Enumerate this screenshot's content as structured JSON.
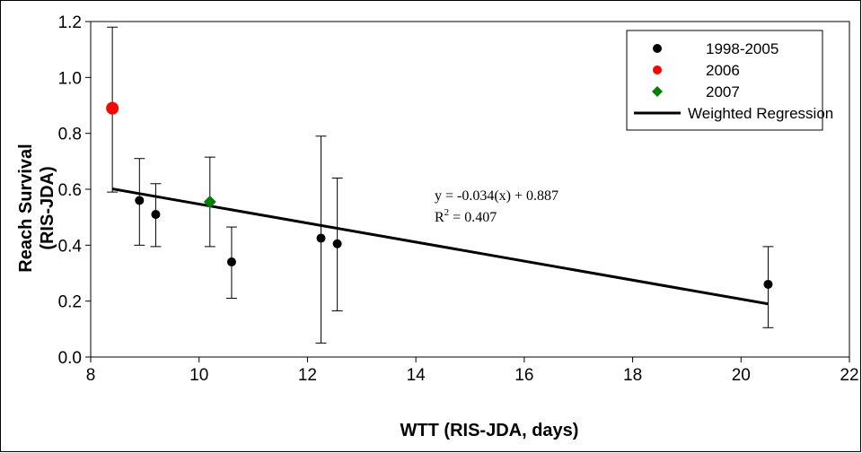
{
  "chart_data": {
    "type": "scatter",
    "xlabel": "WTT (RIS-JDA, days)",
    "ylabel": [
      "Reach Survival",
      "(RIS-JDA)"
    ],
    "xlim": [
      8,
      22
    ],
    "ylim": [
      0.0,
      1.2
    ],
    "x_ticks": [
      8,
      10,
      12,
      14,
      16,
      18,
      20,
      22
    ],
    "y_ticks": [
      0.0,
      0.2,
      0.4,
      0.6,
      0.8,
      1.0,
      1.2
    ],
    "y_tick_labels": [
      "0.0",
      "0.2",
      "0.4",
      "0.6",
      "0.8",
      "1.0",
      "1.2"
    ],
    "grid": false,
    "legend_position": "top-right",
    "series": [
      {
        "name": "1998-2005",
        "marker": "circle",
        "color": "#000000",
        "points": [
          {
            "x": 8.9,
            "y": 0.56,
            "err_low": 0.4,
            "err_high": 0.71
          },
          {
            "x": 9.2,
            "y": 0.51,
            "err_low": 0.395,
            "err_high": 0.62
          },
          {
            "x": 10.6,
            "y": 0.34,
            "err_low": 0.21,
            "err_high": 0.465
          },
          {
            "x": 12.25,
            "y": 0.425,
            "err_low": 0.05,
            "err_high": 0.79
          },
          {
            "x": 12.55,
            "y": 0.405,
            "err_low": 0.165,
            "err_high": 0.64
          },
          {
            "x": 20.5,
            "y": 0.26,
            "err_low": 0.105,
            "err_high": 0.395
          }
        ]
      },
      {
        "name": "2006",
        "marker": "circle",
        "color": "#ff0000",
        "points": [
          {
            "x": 8.4,
            "y": 0.89,
            "err_low": 0.59,
            "err_high": 1.18
          }
        ]
      },
      {
        "name": "2007",
        "marker": "diamond",
        "color": "#008000",
        "points": [
          {
            "x": 10.2,
            "y": 0.555,
            "err_low": 0.395,
            "err_high": 0.715
          }
        ]
      }
    ],
    "regression": {
      "name": "Weighted Regression",
      "slope": -0.034,
      "intercept": 0.887,
      "x_range": [
        8.4,
        20.5
      ],
      "color": "#000000"
    },
    "annotation": {
      "equation": "y = -0.034(x) + 0.887",
      "r2_prefix": "R",
      "r2_sup": "2",
      "r2_value": " = 0.407"
    }
  }
}
